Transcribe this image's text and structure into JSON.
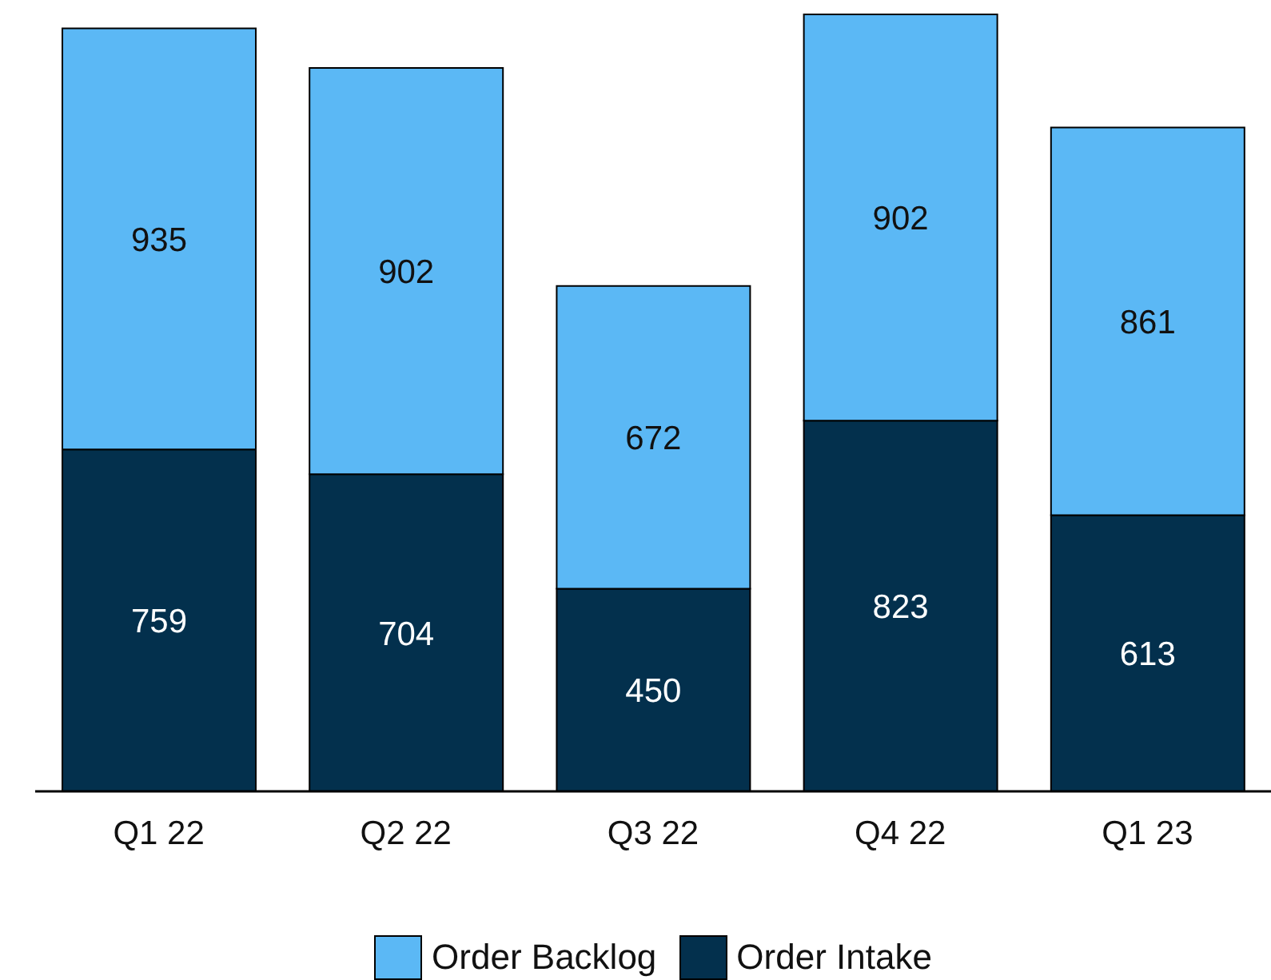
{
  "chart_data": {
    "type": "bar",
    "stacked": true,
    "categories": [
      "Q1 22",
      "Q2 22",
      "Q3 22",
      "Q4 22",
      "Q1 23"
    ],
    "series": [
      {
        "name": "Order Intake",
        "color": "#03304d",
        "values": [
          759,
          704,
          450,
          823,
          613
        ]
      },
      {
        "name": "Order Backlog",
        "color": "#5bb8f5",
        "values": [
          935,
          902,
          672,
          902,
          861
        ]
      }
    ],
    "data_labels": true,
    "legend": "bottom",
    "grid": false
  }
}
